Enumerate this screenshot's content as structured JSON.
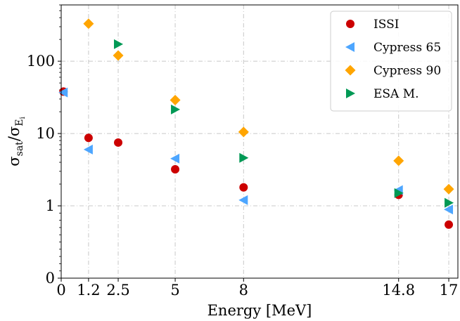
{
  "chart_data": {
    "type": "scatter",
    "xlabel": "Energy [MeV]",
    "ylabel": {
      "main": "σ",
      "sub1": "sat",
      "slash": "/σ",
      "sub2": "E",
      "sub3": "i"
    },
    "xlim": [
      0,
      17.4
    ],
    "x_scale": "linear",
    "x_ticks": [
      0,
      1.2,
      2.5,
      5,
      8,
      14.8,
      17
    ],
    "x_tick_labels": [
      "0",
      "1.2",
      "2.5",
      "5",
      "8",
      "14.8",
      "17"
    ],
    "ylim": [
      0,
      600
    ],
    "y_scale": "symlog",
    "y_linthresh": 1,
    "y_ticks": [
      0,
      1,
      10,
      100
    ],
    "y_tick_labels": [
      "0",
      "1",
      "10",
      "100"
    ],
    "grid": true,
    "legend_position": "top-right",
    "series": [
      {
        "name": "ISSI",
        "marker": "circle",
        "color": "#cc0000",
        "x": [
          0.1,
          1.2,
          2.5,
          5,
          8,
          14.8,
          17
        ],
        "y": [
          38,
          8.7,
          7.5,
          3.2,
          1.8,
          1.42,
          0.74
        ]
      },
      {
        "name": "Cypress 65",
        "marker": "triangle-left",
        "color": "#4da6ff",
        "x": [
          0.1,
          1.2,
          5,
          8,
          14.8,
          17
        ],
        "y": [
          37,
          6.0,
          4.5,
          1.2,
          1.65,
          0.95
        ]
      },
      {
        "name": "Cypress 90",
        "marker": "diamond",
        "color": "#ffa500",
        "x": [
          1.2,
          2.5,
          5,
          8,
          14.8,
          17
        ],
        "y": [
          330,
          120,
          29,
          10.5,
          4.2,
          1.7
        ]
      },
      {
        "name": "ESA M.",
        "marker": "triangle-right",
        "color": "#009955",
        "x": [
          2.5,
          5,
          8,
          14.8,
          17
        ],
        "y": [
          172,
          21.5,
          4.6,
          1.5,
          1.1
        ]
      }
    ]
  }
}
